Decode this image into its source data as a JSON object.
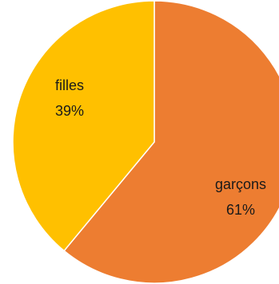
{
  "chart_data": {
    "type": "pie",
    "title": "",
    "start_angle_deg": 0,
    "direction": "clockwise",
    "legend": "none",
    "slices": [
      {
        "label": "garçons",
        "value": 61,
        "value_label": "61%",
        "color": "#ED7D31"
      },
      {
        "label": "filles",
        "value": 39,
        "value_label": "39%",
        "color": "#FFC000"
      }
    ]
  }
}
